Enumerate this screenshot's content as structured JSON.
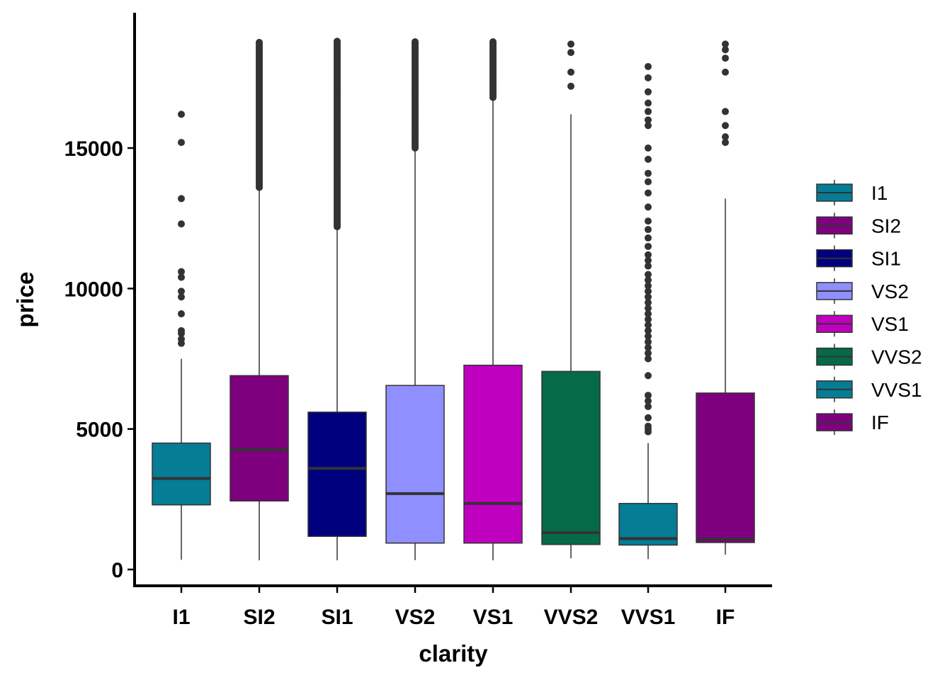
{
  "chart_data": {
    "type": "box",
    "xlabel": "clarity",
    "ylabel": "price",
    "ylim": [
      -600,
      19900
    ],
    "yticks": [
      0,
      5000,
      10000,
      15000
    ],
    "ytick_labels": [
      "0",
      "5000",
      "10000",
      "15000"
    ],
    "legend_position": "right",
    "grid": false,
    "categories": [
      "I1",
      "SI2",
      "SI1",
      "VS2",
      "VS1",
      "VVS2",
      "VVS1",
      "IF"
    ],
    "series": [
      {
        "name": "I1",
        "color": "#057d95",
        "whisker_low": 345,
        "q1": 2300,
        "median": 3240,
        "q3": 4500,
        "whisker_high": 7500,
        "outliers": [
          8050,
          8200,
          8400,
          8500,
          9100,
          9700,
          9900,
          10400,
          10600,
          12300,
          13200,
          15200,
          16200
        ]
      },
      {
        "name": "SI2",
        "color": "#7f007f",
        "whisker_low": 326,
        "q1": 2440,
        "median": 4270,
        "q3": 6900,
        "whisker_high": 13600,
        "outlier_range": [
          13600,
          18800
        ]
      },
      {
        "name": "SI1",
        "color": "#00007f",
        "whisker_low": 326,
        "q1": 1180,
        "median": 3600,
        "q3": 5600,
        "whisker_high": 12200,
        "outlier_range": [
          12200,
          18800
        ]
      },
      {
        "name": "VS2",
        "color": "#8f8fff",
        "whisker_low": 334,
        "q1": 940,
        "median": 2700,
        "q3": 6550,
        "whisker_high": 15000,
        "outlier_range": [
          15000,
          18800
        ]
      },
      {
        "name": "VS1",
        "color": "#bf00bf",
        "whisker_low": 327,
        "q1": 940,
        "median": 2350,
        "q3": 7270,
        "whisker_high": 16800,
        "outlier_range": [
          16800,
          18800
        ]
      },
      {
        "name": "VVS2",
        "color": "#056a48",
        "whisker_low": 400,
        "q1": 890,
        "median": 1310,
        "q3": 7050,
        "whisker_high": 16200,
        "outliers": [
          17200,
          17700,
          18400,
          18700
        ]
      },
      {
        "name": "VVS1",
        "color": "#057d95",
        "whisker_low": 370,
        "q1": 870,
        "median": 1100,
        "q3": 2350,
        "whisker_high": 4500,
        "outliers": [
          4900,
          5000,
          5100,
          5400,
          5800,
          6000,
          6200,
          6900,
          7500,
          7700,
          7900,
          8100,
          8300,
          8500,
          8700,
          8900,
          9100,
          9300,
          9500,
          9700,
          9900,
          10100,
          10300,
          10500,
          10800,
          11000,
          11200,
          11500,
          11800,
          12100,
          12400,
          12900,
          13400,
          13800,
          14100,
          14600,
          15000,
          15800,
          16000,
          16300,
          16600,
          17000,
          17500,
          17900
        ]
      },
      {
        "name": "IF",
        "color": "#7f007f",
        "whisker_low": 530,
        "q1": 960,
        "median": 1080,
        "q3": 6280,
        "whisker_high": 13200,
        "outliers": [
          15200,
          15400,
          15800,
          16300,
          17700,
          18200,
          18500,
          18700
        ]
      }
    ]
  }
}
